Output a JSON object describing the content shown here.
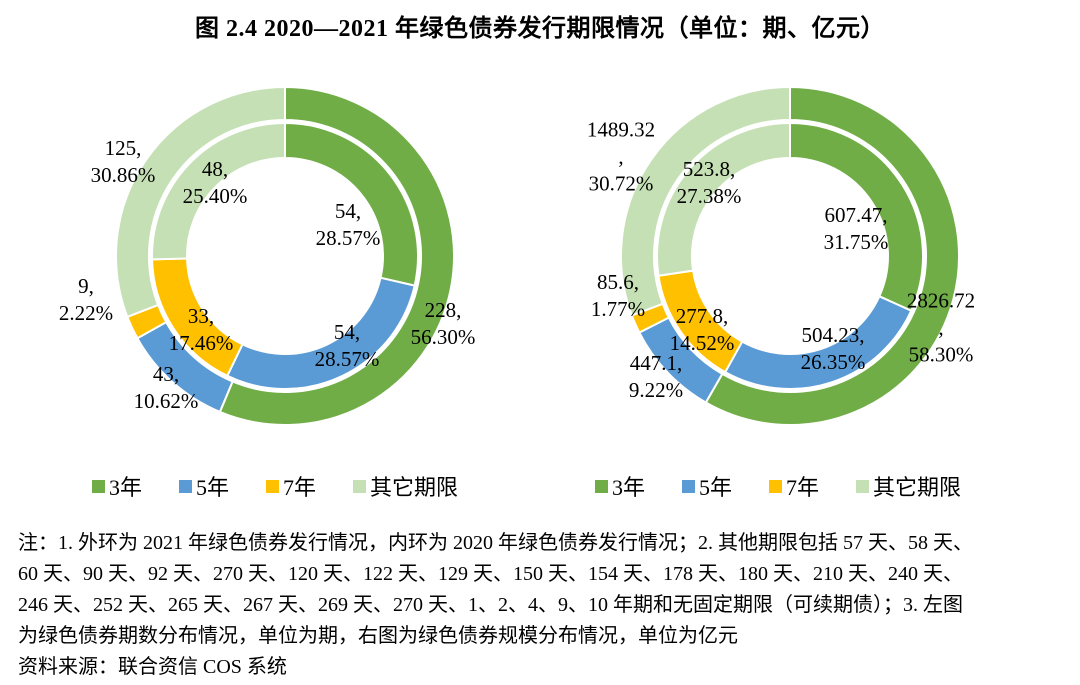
{
  "figure_title": "图 2.4  2020—2021 年绿色债券发行期限情况（单位：期、亿元）",
  "palette": {
    "green": "#70AD47",
    "blue": "#5B9BD5",
    "yellow": "#FFC000",
    "light_green": "#C5E0B4",
    "text": "#000000",
    "background": "#FFFFFF"
  },
  "legend_items": [
    {
      "label": "3年",
      "color": "#70AD47"
    },
    {
      "label": "5年",
      "color": "#5B9BD5"
    },
    {
      "label": "7年",
      "color": "#FFC000"
    },
    {
      "label": "其它期限",
      "color": "#C5E0B4"
    }
  ],
  "chart_data": [
    {
      "type": "pie",
      "subtype": "nested-donut",
      "panel": "左图",
      "unit": "期",
      "categories": [
        "3年",
        "5年",
        "7年",
        "其它期限"
      ],
      "colors": [
        "#70AD47",
        "#5B9BD5",
        "#FFC000",
        "#C5E0B4"
      ],
      "series": [
        {
          "name": "2021年绿色债券发行情况（外环）",
          "values": [
            228,
            43,
            9,
            125
          ],
          "percent_labels": [
            "56.30%",
            "10.62%",
            "2.22%",
            "30.86%"
          ]
        },
        {
          "name": "2020年绿色债券发行情况（内环）",
          "values": [
            54,
            54,
            33,
            48
          ],
          "percent_labels": [
            "28.57%",
            "28.57%",
            "17.46%",
            "25.40%"
          ]
        }
      ]
    },
    {
      "type": "pie",
      "subtype": "nested-donut",
      "panel": "右图",
      "unit": "亿元",
      "categories": [
        "3年",
        "5年",
        "7年",
        "其它期限"
      ],
      "colors": [
        "#70AD47",
        "#5B9BD5",
        "#FFC000",
        "#C5E0B4"
      ],
      "series": [
        {
          "name": "2021年绿色债券发行情况（外环）",
          "values": [
            2826.72,
            447.1,
            85.6,
            1489.32
          ],
          "percent_labels": [
            "58.30%",
            "9.22%",
            "1.77%",
            "30.72%"
          ]
        },
        {
          "name": "2020年绿色债券发行情况（内环）",
          "values": [
            607.47,
            504.23,
            277.8,
            523.8
          ],
          "percent_labels": [
            "31.75%",
            "26.35%",
            "14.52%",
            "27.38%"
          ]
        }
      ]
    }
  ],
  "data_labels": {
    "left": [
      "125,\n30.86%",
      "48,\n25.40%",
      "54,\n28.57%",
      "228,\n56.30%",
      "54,\n28.57%",
      "33,\n17.46%",
      "9,\n2.22%",
      "43,\n10.62%"
    ],
    "right": [
      "1489.32\n,\n30.72%",
      "523.8,\n27.38%",
      "607.47,\n31.75%",
      "2826.72\n,\n58.30%",
      "504.23,\n26.35%",
      "277.8,\n14.52%",
      "85.6,\n1.77%",
      "447.1,\n9.22%"
    ]
  },
  "notes": {
    "lines": [
      "注：1. 外环为 2021 年绿色债券发行情况，内环为 2020 年绿色债券发行情况；2. 其他期限包括 57 天、58 天、",
      "60 天、90 天、92 天、270 天、120 天、122 天、129 天、150 天、154 天、178 天、180 天、210 天、240 天、",
      "246 天、252 天、265 天、267 天、269 天、270 天、1、2、4、9、10 年期和无固定期限（可续期债）；3. 左图",
      "为绿色债券期数分布情况，单位为期，右图为绿色债券规模分布情况，单位为亿元"
    ],
    "source": "资料来源：联合资信 COS 系统"
  }
}
